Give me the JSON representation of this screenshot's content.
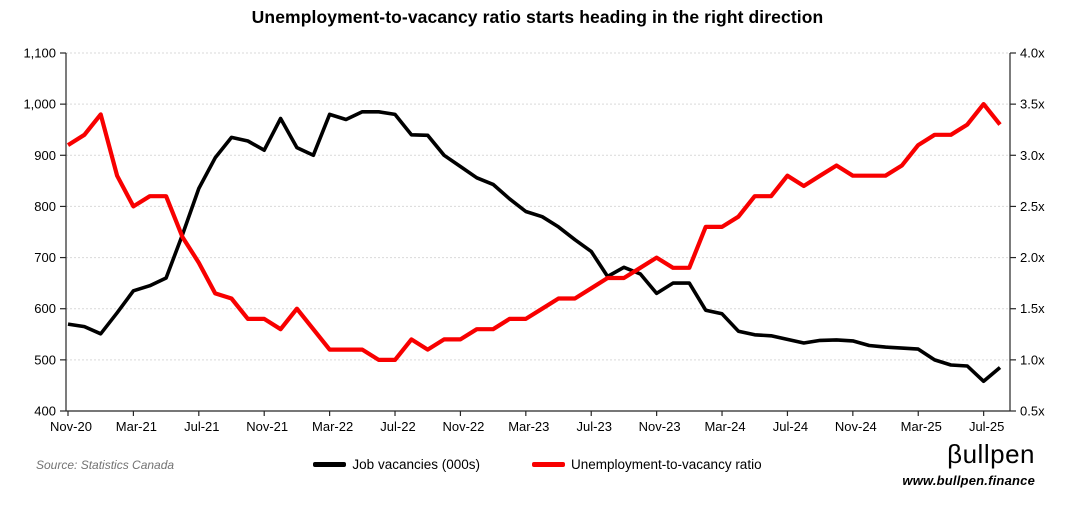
{
  "title": "Unemployment-to-vacancy ratio starts heading in the right direction",
  "source_note": "Source: Statistics Canada",
  "branding": {
    "name": "βullpen",
    "url": "www.bullpen.finance"
  },
  "legend": [
    {
      "label": "Job vacancies (000s)",
      "color": "#000000"
    },
    {
      "label": "Unemployment-to-vacancy ratio",
      "color": "#f80000"
    }
  ],
  "colors": {
    "gridline": "#d9d9d9",
    "axis": "#262626",
    "black_series": "#000000",
    "red_series": "#f80000"
  },
  "chart_data": {
    "type": "line",
    "title": "Unemployment-to-vacancy ratio starts heading in the right direction",
    "grid": "horizontal-dashed",
    "legend_position": "bottom-center",
    "x": [
      "Nov-20",
      "Dec-20",
      "Jan-21",
      "Feb-21",
      "Mar-21",
      "Apr-21",
      "May-21",
      "Jun-21",
      "Jul-21",
      "Aug-21",
      "Sep-21",
      "Oct-21",
      "Nov-21",
      "Dec-21",
      "Jan-22",
      "Feb-22",
      "Mar-22",
      "Apr-22",
      "May-22",
      "Jun-22",
      "Jul-22",
      "Aug-22",
      "Sep-22",
      "Oct-22",
      "Nov-22",
      "Dec-22",
      "Jan-23",
      "Feb-23",
      "Mar-23",
      "Apr-23",
      "May-23",
      "Jun-23",
      "Jul-23",
      "Aug-23",
      "Sep-23",
      "Oct-23",
      "Nov-23",
      "Dec-23",
      "Jan-24",
      "Feb-24",
      "Mar-24",
      "Apr-24",
      "May-24",
      "Jun-24",
      "Jul-24",
      "Aug-24",
      "Sep-24",
      "Oct-24",
      "Nov-24",
      "Dec-24",
      "Jan-25",
      "Feb-25",
      "Mar-25",
      "Apr-25",
      "May-25",
      "Jun-25",
      "Jul-25",
      "Aug-25"
    ],
    "x_tick_labels": [
      "Nov-20",
      "Mar-21",
      "Jul-21",
      "Nov-21",
      "Mar-22",
      "Jul-22",
      "Nov-22",
      "Mar-23",
      "Jul-23",
      "Nov-23",
      "Mar-24",
      "Jul-24",
      "Nov-24",
      "Mar-25",
      "Jul-25"
    ],
    "left_axis": {
      "ylim": [
        400,
        1100
      ],
      "step": 100,
      "tick_labels": [
        "1,100",
        "1,000",
        "900",
        "800",
        "700",
        "600",
        "500",
        "400"
      ]
    },
    "right_axis": {
      "ylim": [
        0.5,
        4.0
      ],
      "step": 0.5,
      "tick_labels": [
        "4.0x",
        "3.5x",
        "3.0x",
        "2.5x",
        "2.0x",
        "1.5x",
        "1.0x",
        "0.5x"
      ]
    },
    "series": [
      {
        "name": "Job vacancies (000s)",
        "axis": "left",
        "color": "#000000",
        "width": 3.6,
        "values": [
          570,
          565,
          551,
          592,
          635,
          645,
          660,
          745,
          835,
          895,
          935,
          928,
          910,
          972,
          915,
          900,
          980,
          970,
          985,
          985,
          980,
          940,
          939,
          900,
          878,
          856,
          843,
          815,
          790,
          780,
          760,
          735,
          712,
          663,
          681,
          668,
          630,
          650,
          650,
          597,
          590,
          556,
          549,
          547,
          540,
          533,
          538,
          539,
          537,
          528,
          525,
          523,
          521,
          500,
          490,
          488,
          458,
          485
        ]
      },
      {
        "name": "Unemployment-to-vacancy ratio",
        "axis": "right",
        "color": "#f80000",
        "width": 4.2,
        "values": [
          3.1,
          3.2,
          3.4,
          2.8,
          2.5,
          2.6,
          2.6,
          2.2,
          1.95,
          1.65,
          1.6,
          1.4,
          1.4,
          1.3,
          1.5,
          1.3,
          1.1,
          1.1,
          1.1,
          1.0,
          1.0,
          1.2,
          1.1,
          1.2,
          1.2,
          1.3,
          1.3,
          1.4,
          1.4,
          1.5,
          1.6,
          1.6,
          1.7,
          1.8,
          1.8,
          1.9,
          2.0,
          1.9,
          1.9,
          2.3,
          2.3,
          2.4,
          2.6,
          2.6,
          2.8,
          2.7,
          2.8,
          2.9,
          2.8,
          2.8,
          2.8,
          2.9,
          3.1,
          3.2,
          3.2,
          3.3,
          3.5,
          3.3
        ]
      }
    ]
  }
}
